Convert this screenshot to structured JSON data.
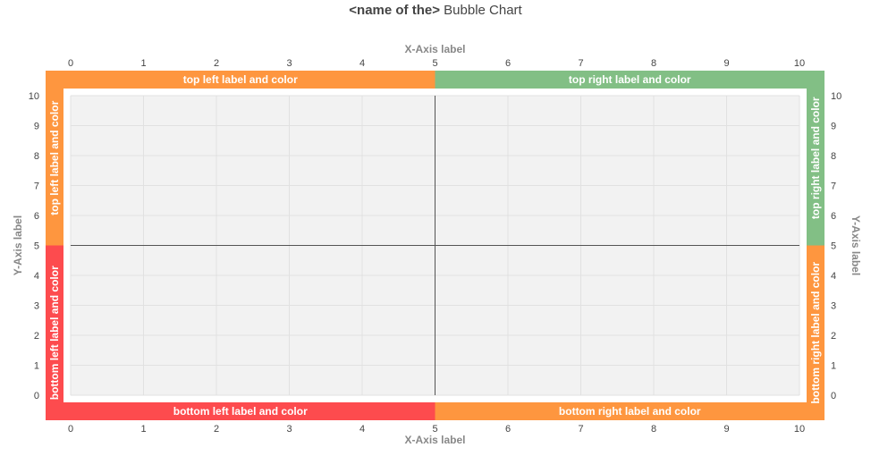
{
  "chart_data": {
    "type": "scatter",
    "title": "Bubble Chart",
    "title_prefix": "<name of the>",
    "xlabel_top": "X-Axis label",
    "xlabel_bottom": "X-Axis label",
    "ylabel_left": "Y-Axis label",
    "ylabel_right": "Y-Axis label",
    "xlim": [
      0,
      10
    ],
    "ylim": [
      0,
      10
    ],
    "x_ticks": [
      "0",
      "1",
      "2",
      "3",
      "4",
      "5",
      "6",
      "7",
      "8",
      "9",
      "10"
    ],
    "y_ticks": [
      "0",
      "1",
      "2",
      "3",
      "4",
      "5",
      "6",
      "7",
      "8",
      "9",
      "10"
    ],
    "grid": true,
    "center_lines": {
      "x": 5,
      "y": 5
    },
    "points": [],
    "quadrant_bars": {
      "top_left": {
        "label": "top left label and color",
        "color": "#fe963f"
      },
      "top_right": {
        "label": "top right label and color",
        "color": "#82bf85"
      },
      "bottom_left": {
        "label": "bottom left label and color",
        "color": "#fd4b4e"
      },
      "bottom_right": {
        "label": "bottom right label and color",
        "color": "#fe963f"
      },
      "left_top": {
        "label": "top left label and color",
        "color": "#fe963f"
      },
      "left_bottom": {
        "label": "bottom left label and color",
        "color": "#fd4b4e"
      },
      "right_top": {
        "label": "top right label and color",
        "color": "#82bf85"
      },
      "right_bottom": {
        "label": "bottom right label and color",
        "color": "#fe963f"
      }
    },
    "colors": {
      "plot_bg": "#f2f2f2",
      "grid": "#e1e1e1",
      "center_line": "#555555",
      "tick_text": "#444444",
      "axis_label": "#888888"
    }
  }
}
